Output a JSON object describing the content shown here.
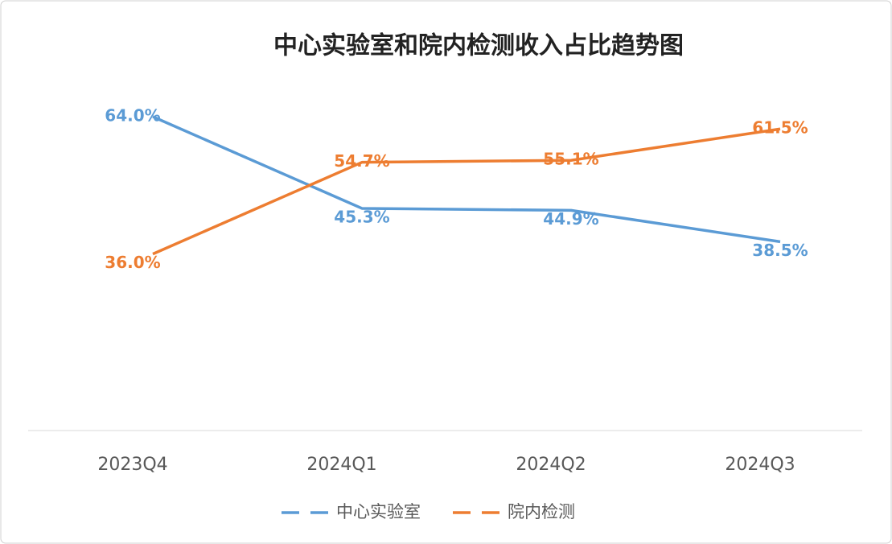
{
  "chart_data": {
    "type": "line",
    "title": "中心实验室和院内检测收入占比趋势图",
    "categories": [
      "2023Q4",
      "2024Q1",
      "2024Q2",
      "2024Q3"
    ],
    "series": [
      {
        "name": "中心实验室",
        "color": "#5b9bd5",
        "values": [
          64.0,
          45.3,
          44.9,
          38.5
        ],
        "value_labels": [
          "64.0%",
          "45.3%",
          "44.9%",
          "38.5%"
        ]
      },
      {
        "name": "院内检测",
        "color": "#ed7d31",
        "values": [
          36.0,
          54.7,
          55.1,
          61.5
        ],
        "value_labels": [
          "36.0%",
          "54.7%",
          "55.1%",
          "61.5%"
        ]
      }
    ],
    "legend": "bottom"
  }
}
